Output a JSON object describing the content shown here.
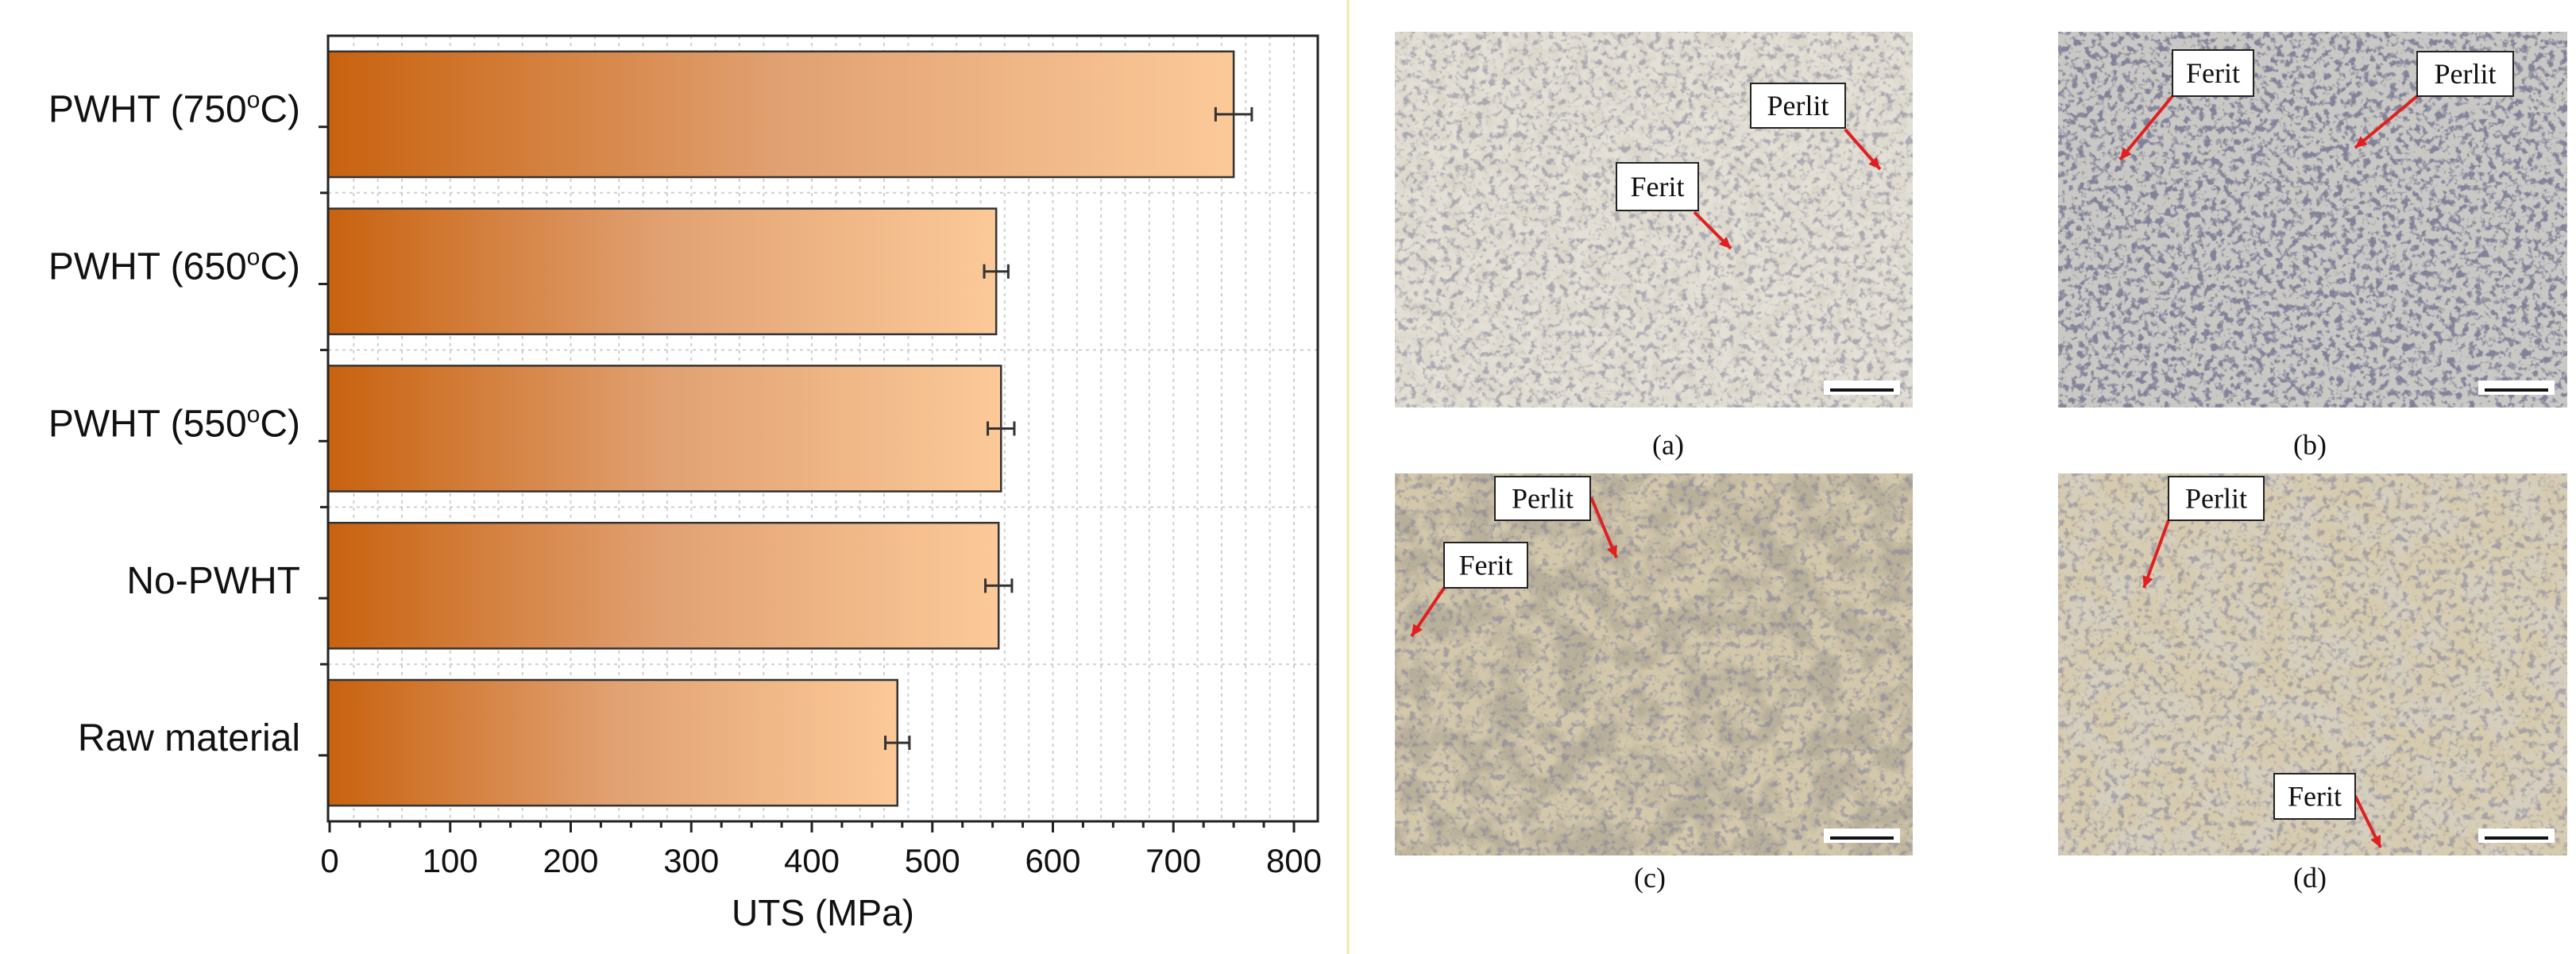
{
  "chart_data": {
    "type": "bar",
    "orientation": "horizontal",
    "categories": [
      "PWHT (750°C)",
      "PWHT (650°C)",
      "PWHT (550°C)",
      "No-PWHT",
      "Raw material"
    ],
    "values": [
      750,
      553,
      557,
      555,
      471
    ],
    "errors": [
      15,
      10,
      11,
      11,
      10
    ],
    "xlabel": "UTS (MPa)",
    "ylabel": "",
    "xlim": [
      0,
      820
    ],
    "xticks": [
      0,
      100,
      200,
      300,
      400,
      500,
      600,
      700,
      800
    ],
    "grid": true,
    "colors": {
      "bar_start": "#c8620f",
      "bar_end": "#fcc998",
      "edge": "#333333",
      "divider": "#f3e9a8"
    }
  },
  "micrographs": [
    {
      "caption": "(a)",
      "labels": [
        "Perlit",
        "Ferit"
      ]
    },
    {
      "caption": "(b)",
      "labels": [
        "Ferit",
        "Perlit"
      ]
    },
    {
      "caption": "(c)",
      "labels": [
        "Perlit",
        "Ferit"
      ]
    },
    {
      "caption": "(d)",
      "labels": [
        "Perlit",
        "Ferit"
      ]
    }
  ],
  "arrow_color": "#e02020"
}
